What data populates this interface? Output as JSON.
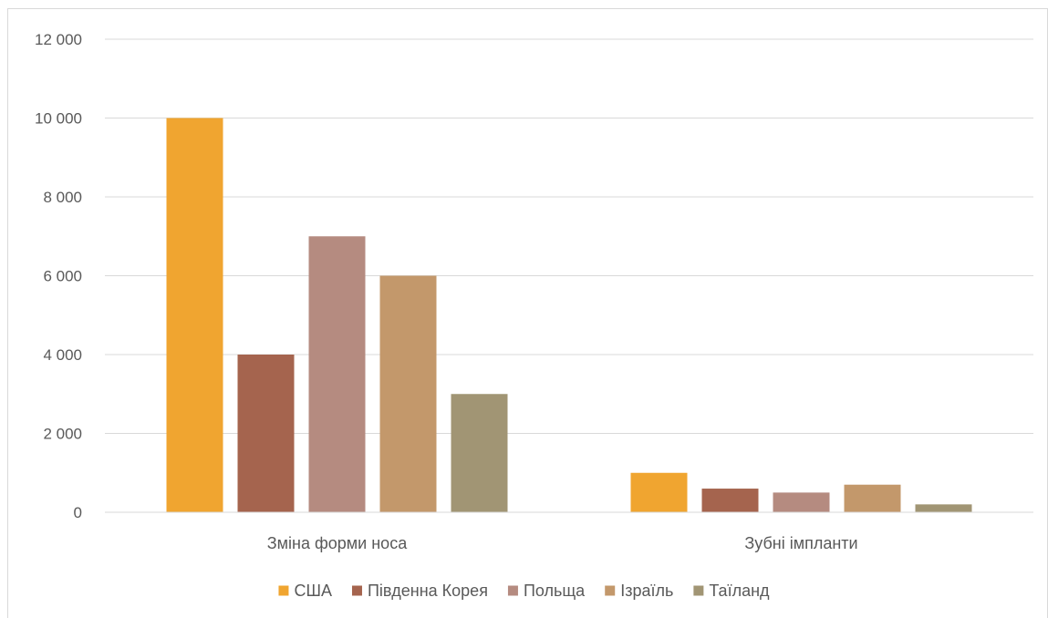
{
  "chart_data": {
    "type": "bar",
    "title": "",
    "xlabel": "",
    "ylabel": "",
    "categories": [
      "Зміна форми носа",
      "Зубні імпланти"
    ],
    "series": [
      {
        "name": "США",
        "values": [
          10000,
          1000
        ],
        "color": "#F0A530"
      },
      {
        "name": "Південна Корея",
        "values": [
          4000,
          600
        ],
        "color": "#A5644E"
      },
      {
        "name": "Польща",
        "values": [
          7000,
          500
        ],
        "color": "#B58B80"
      },
      {
        "name": "Ізраїль",
        "values": [
          6000,
          700
        ],
        "color": "#C3986B"
      },
      {
        "name": "Таїланд",
        "values": [
          3000,
          200
        ],
        "color": "#A19574"
      }
    ],
    "ylim": [
      0,
      12000
    ],
    "yticks": [
      0,
      2000,
      4000,
      6000,
      8000,
      10000,
      12000
    ],
    "ytick_labels": [
      "0",
      "2 000",
      "4 000",
      "6 000",
      "8 000",
      "10 000",
      "12 000"
    ],
    "grid": true,
    "legend_position": "bottom"
  }
}
